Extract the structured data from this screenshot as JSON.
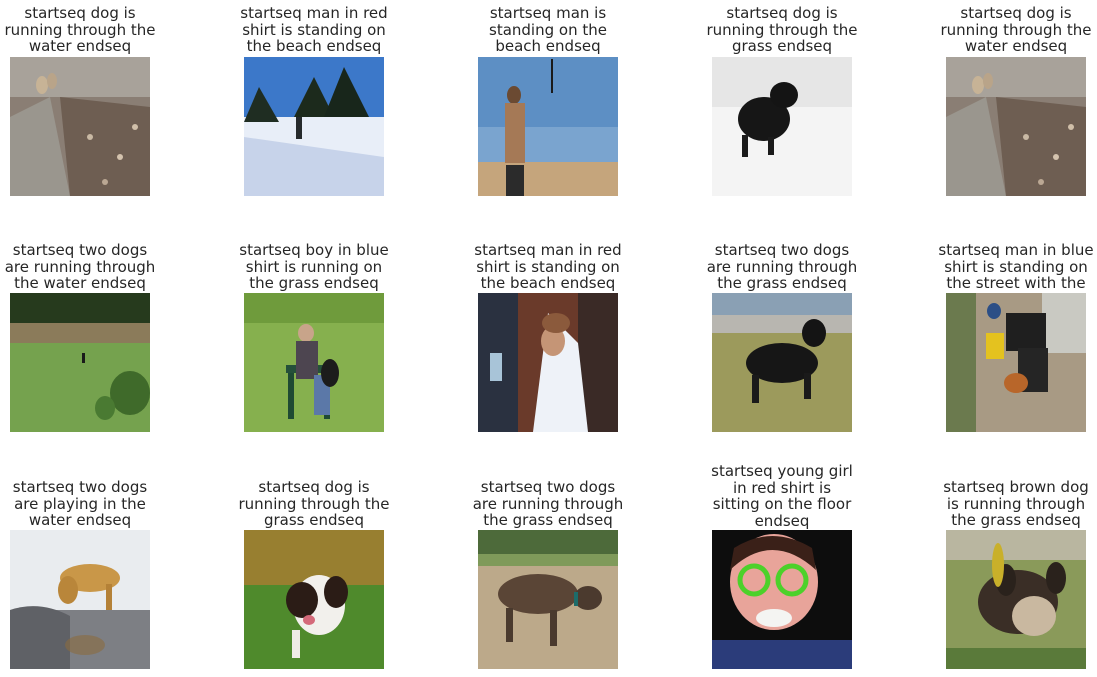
{
  "figure": {
    "rows": [
      [
        {
          "caption": "startseq dog is\nrunning through the\nwater endseq",
          "picture": "dog-on-leafy-path"
        },
        {
          "caption": "startseq man in red\nshirt is standing on\nthe beach endseq",
          "picture": "skier-in-snow"
        },
        {
          "caption": "startseq man is\nstanding on the\nbeach endseq",
          "picture": "man-at-beach"
        },
        {
          "caption": "startseq dog is\nrunning through the\ngrass endseq",
          "picture": "black-dog-in-snow"
        },
        {
          "caption": "startseq dog is\nrunning through the\nwater endseq",
          "picture": "dog-on-leafy-path"
        }
      ],
      [
        {
          "caption": "startseq two dogs\nare running through\nthe water endseq",
          "picture": "person-in-field"
        },
        {
          "caption": "startseq boy in blue\nshirt is running on\nthe grass endseq",
          "picture": "man-on-bench-with-dog"
        },
        {
          "caption": "startseq man in red\nshirt is standing on\nthe beach endseq",
          "picture": "bride-in-veil"
        },
        {
          "caption": "startseq two dogs\nare running through\nthe grass endseq",
          "picture": "black-dog-on-grass"
        },
        {
          "caption": "startseq man in blue\nshirt is standing on\nthe street with the\ncamera endseq",
          "picture": "people-on-street"
        }
      ],
      [
        {
          "caption": "startseq two dogs\nare playing in the\nwater endseq",
          "picture": "golden-dog-in-water"
        },
        {
          "caption": "startseq dog is\nrunning through the\ngrass endseq",
          "picture": "spaniel-on-grass"
        },
        {
          "caption": "startseq two dogs\nare running through\nthe grass endseq",
          "picture": "brindle-dog-in-park"
        },
        {
          "caption": "startseq young girl\nin red shirt is\nsitting on the floor\nendseq",
          "picture": "child-with-green-glasses"
        },
        {
          "caption": "startseq brown dog\nis running through\nthe grass endseq",
          "picture": "dog-in-tall-grass"
        }
      ]
    ]
  }
}
